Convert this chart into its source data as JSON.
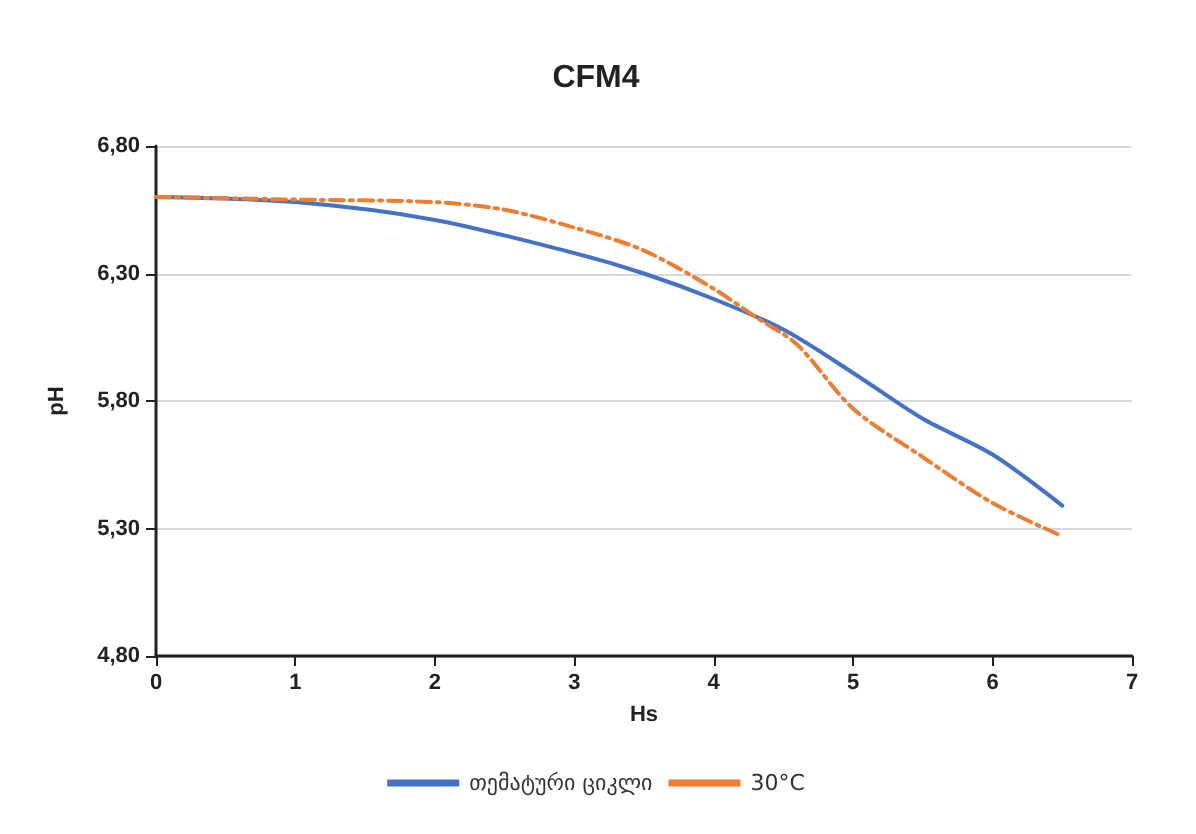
{
  "chart_data": {
    "type": "line",
    "title": "CFM4",
    "xlabel": "Hs",
    "ylabel": "pH",
    "xlim": [
      0,
      7
    ],
    "xticks": [
      0,
      1,
      2,
      3,
      4,
      5,
      6,
      7
    ],
    "ylim": [
      4.8,
      6.8
    ],
    "yticks": [
      {
        "value": 4.8,
        "label": "4,80"
      },
      {
        "value": 5.3,
        "label": "5,30"
      },
      {
        "value": 5.8,
        "label": "5,80"
      },
      {
        "value": 6.3,
        "label": "6,30"
      },
      {
        "value": 6.8,
        "label": "6,80"
      }
    ],
    "grid": "y",
    "legend": "bottom",
    "marker": "none",
    "series": [
      {
        "name": "თემატური ციკლი",
        "color": "#4472c4",
        "line_style": "solid",
        "x": [
          0,
          1,
          2,
          3,
          3.5,
          4,
          4.5,
          5,
          5.5,
          6,
          6.5
        ],
        "values": [
          6.6,
          6.58,
          6.51,
          6.38,
          6.3,
          6.2,
          6.08,
          5.91,
          5.73,
          5.59,
          5.39
        ]
      },
      {
        "name": "30°C",
        "color": "#ed7d31",
        "line_style": "dashed",
        "x": [
          0,
          1,
          2,
          2.5,
          3,
          3.5,
          4,
          4.3,
          4.6,
          5,
          5.5,
          6,
          6.5
        ],
        "values": [
          6.6,
          6.59,
          6.58,
          6.55,
          6.48,
          6.39,
          6.24,
          6.13,
          6.02,
          5.77,
          5.58,
          5.4,
          5.27
        ]
      }
    ]
  }
}
